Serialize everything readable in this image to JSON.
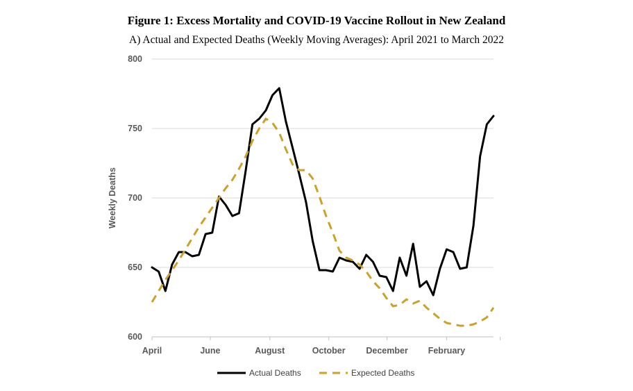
{
  "figure": {
    "title": "Figure 1: Excess Mortality and COVID-19 Vaccine Rollout in New Zealand",
    "subtitle": "A)  Actual and Expected Deaths (Weekly Moving Averages): April 2021 to March 2022"
  },
  "chart_data": {
    "type": "line",
    "title": "Actual and Expected Deaths (Weekly Moving Averages): April 2021 to March 2022",
    "xlabel": "",
    "ylabel": "Weekly Deaths",
    "ylim": [
      600,
      800
    ],
    "yticks": [
      600,
      650,
      700,
      750,
      800
    ],
    "x_tick_labels": [
      {
        "label": "April",
        "week": 0
      },
      {
        "label": "June",
        "week": 8.7
      },
      {
        "label": "August",
        "week": 17.6
      },
      {
        "label": "October",
        "week": 26.4
      },
      {
        "label": "December",
        "week": 35.1
      },
      {
        "label": "February",
        "week": 44
      },
      {
        "label": "",
        "week": 52
      }
    ],
    "grid": true,
    "legend": "bottom",
    "colors": {
      "actual": "#000000",
      "expected": "#C9A227",
      "grid": "#D9D9D9"
    },
    "series": [
      {
        "name": "Actual Deaths",
        "style": "solid",
        "values": [
          650,
          647,
          633,
          652,
          661,
          661,
          658,
          659,
          674,
          675,
          701,
          695,
          687,
          689,
          720,
          753,
          757,
          763,
          774,
          779,
          755,
          736,
          717,
          697,
          669,
          648,
          648,
          647,
          657,
          655,
          654,
          649,
          659,
          654,
          644,
          643,
          633,
          657,
          644,
          667,
          636,
          640,
          630,
          649,
          663,
          661,
          649,
          650,
          680,
          730,
          753,
          759
        ]
      },
      {
        "name": "Expected Deaths",
        "style": "dashed",
        "values": [
          625,
          633,
          641,
          648,
          655,
          663,
          671,
          679,
          686,
          693,
          700,
          707,
          713,
          721,
          730,
          741,
          750,
          757,
          754,
          747,
          735,
          724,
          720,
          720,
          714,
          701,
          687,
          675,
          662,
          657,
          655,
          652,
          647,
          640,
          635,
          628,
          622,
          623,
          627,
          624,
          626,
          621,
          617,
          613,
          610,
          609,
          608,
          608,
          609,
          611,
          614,
          621
        ]
      }
    ]
  }
}
